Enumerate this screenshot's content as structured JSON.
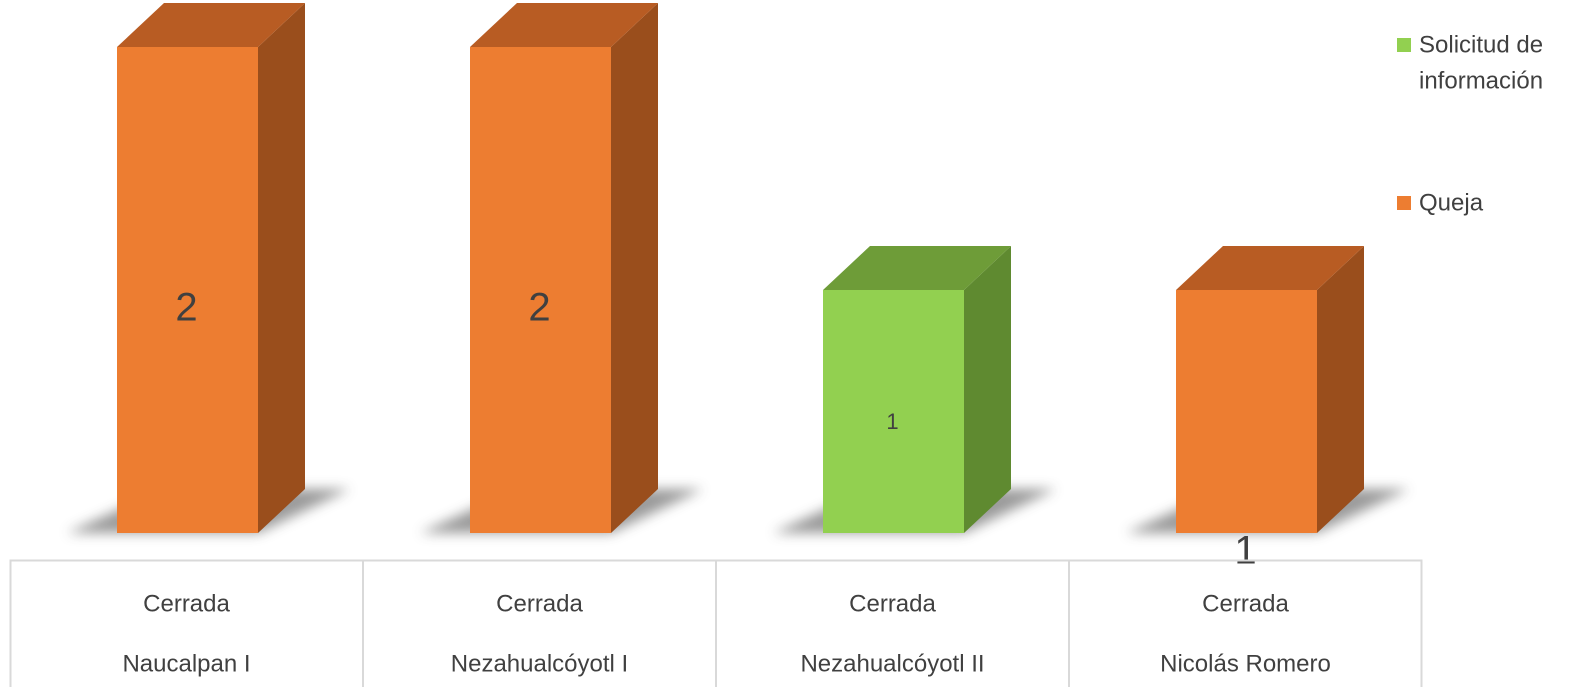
{
  "chart_data": {
    "type": "bar",
    "categories": [
      [
        "Cerrada",
        "Naucalpan I"
      ],
      [
        "Cerrada",
        "Nezahualcóyotl I"
      ],
      [
        "Cerrada",
        "Nezahualcóyotl II"
      ],
      [
        "Cerrada",
        "Nicolás Romero"
      ]
    ],
    "values": [
      2,
      2,
      1,
      1
    ],
    "series_of_point": [
      "Queja",
      "Queja",
      "Solicitud de información",
      "Queja"
    ],
    "data_labels": [
      "2",
      "2",
      "1",
      "1"
    ],
    "series": [
      {
        "name": "Solicitud de información",
        "legend_lines": [
          "Solicitud de",
          "información"
        ],
        "color": "#92d050",
        "side_color": "#5f8a30",
        "top_color": "#6e9c38"
      },
      {
        "name": "Queja",
        "legend_lines": [
          "Queja"
        ],
        "color": "#ed7d31",
        "side_color": "#9a4e1c",
        "top_color": "#b85c23"
      }
    ],
    "ylim": [
      0,
      2
    ],
    "grid": false,
    "legend_position": "top-right",
    "style": "3d-column"
  }
}
